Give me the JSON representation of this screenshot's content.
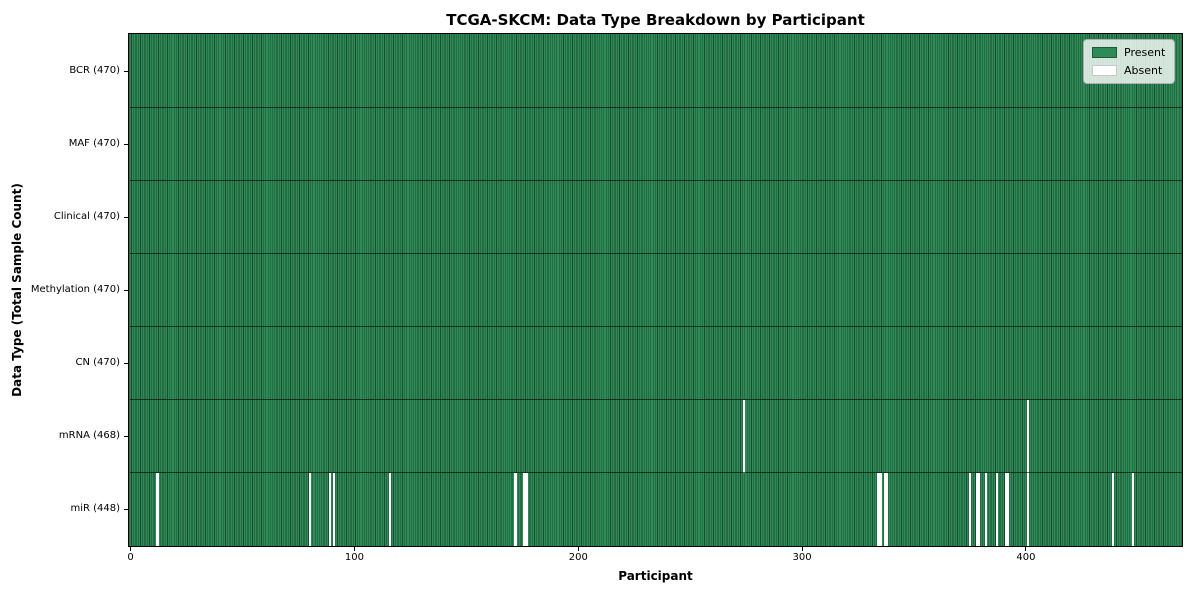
{
  "chart_data": {
    "type": "heatmap",
    "title": "TCGA-SKCM: Data Type Breakdown by Participant",
    "xlabel": "Participant",
    "ylabel": "Data Type (Total Sample Count)",
    "n_participants": 470,
    "x_range": [
      -0.5,
      469.5
    ],
    "x_ticks": [
      0,
      100,
      200,
      300,
      400
    ],
    "grid": false,
    "legend_position": "upper right",
    "legend": [
      {
        "label": "Present",
        "color": "#2e8b57"
      },
      {
        "label": "Absent",
        "color": "#ffffff"
      }
    ],
    "colors": {
      "present_fill": "#2e8b57",
      "bar_edge": "#17452b",
      "absent_fill": "#ffffff",
      "spine": "#000000"
    },
    "rows": [
      {
        "label": "BCR (470)",
        "data_type": "BCR",
        "present_count": 470,
        "absent_participants": []
      },
      {
        "label": "MAF (470)",
        "data_type": "MAF",
        "present_count": 470,
        "absent_participants": []
      },
      {
        "label": "Clinical (470)",
        "data_type": "Clinical",
        "present_count": 470,
        "absent_participants": []
      },
      {
        "label": "Methylation (470)",
        "data_type": "Methylation",
        "present_count": 470,
        "absent_participants": []
      },
      {
        "label": "CN (470)",
        "data_type": "CN",
        "present_count": 470,
        "absent_participants": []
      },
      {
        "label": "mRNA (468)",
        "data_type": "mRNA",
        "present_count": 468,
        "absent_participants": [
          274,
          401
        ]
      },
      {
        "label": "miR (448)",
        "data_type": "miR",
        "present_count": 448,
        "absent_participants": [
          12,
          80,
          89,
          91,
          116,
          172,
          176,
          177,
          334,
          335,
          337,
          338,
          375,
          378,
          379,
          382,
          387,
          391,
          392,
          401,
          439,
          448
        ]
      }
    ]
  }
}
